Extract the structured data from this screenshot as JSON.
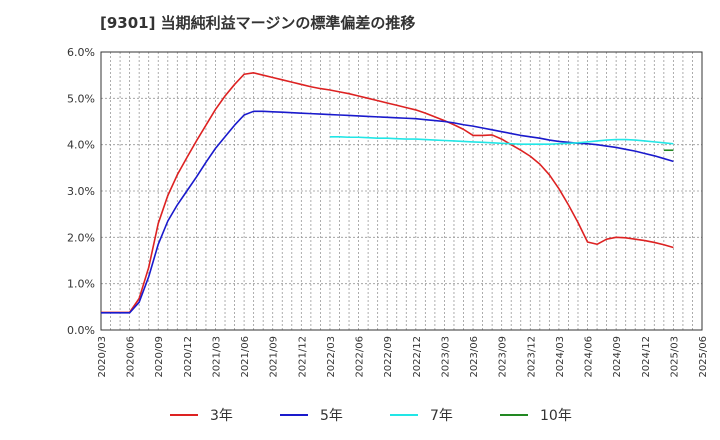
{
  "chart_data": {
    "type": "line",
    "title": "[9301]  当期純利益マージンの標準偏差の推移",
    "xlabel": "",
    "ylabel": "",
    "ylim": [
      0,
      6
    ],
    "y_ticks": [
      "0.0%",
      "1.0%",
      "2.0%",
      "3.0%",
      "4.0%",
      "5.0%",
      "6.0%"
    ],
    "x_ticks": [
      "2020/03",
      "2020/06",
      "2020/09",
      "2020/12",
      "2021/03",
      "2021/06",
      "2021/09",
      "2021/12",
      "2022/03",
      "2022/06",
      "2022/09",
      "2022/12",
      "2023/03",
      "2023/06",
      "2023/09",
      "2023/12",
      "2024/03",
      "2024/06",
      "2024/09",
      "2024/12",
      "2025/03",
      "2025/06"
    ],
    "grid": true,
    "legend_position": "bottom",
    "series": [
      {
        "name": "3年",
        "color": "#dd2222",
        "points": [
          [
            "2020/03",
            0.38
          ],
          [
            "2020/04",
            0.38
          ],
          [
            "2020/05",
            0.38
          ],
          [
            "2020/06",
            0.38
          ],
          [
            "2020/07",
            0.68
          ],
          [
            "2020/08",
            1.35
          ],
          [
            "2020/09",
            2.3
          ],
          [
            "2020/10",
            2.9
          ],
          [
            "2020/11",
            3.35
          ],
          [
            "2020/12",
            3.72
          ],
          [
            "2021/01",
            4.08
          ],
          [
            "2021/02",
            4.42
          ],
          [
            "2021/03",
            4.76
          ],
          [
            "2021/04",
            5.05
          ],
          [
            "2021/05",
            5.3
          ],
          [
            "2021/06",
            5.52
          ],
          [
            "2021/07",
            5.55
          ],
          [
            "2021/08",
            5.5
          ],
          [
            "2021/09",
            5.45
          ],
          [
            "2021/10",
            5.4
          ],
          [
            "2021/11",
            5.35
          ],
          [
            "2021/12",
            5.3
          ],
          [
            "2022/01",
            5.25
          ],
          [
            "2022/02",
            5.21
          ],
          [
            "2022/03",
            5.18
          ],
          [
            "2022/04",
            5.14
          ],
          [
            "2022/05",
            5.1
          ],
          [
            "2022/06",
            5.05
          ],
          [
            "2022/07",
            5.0
          ],
          [
            "2022/08",
            4.95
          ],
          [
            "2022/09",
            4.9
          ],
          [
            "2022/10",
            4.85
          ],
          [
            "2022/11",
            4.8
          ],
          [
            "2022/12",
            4.75
          ],
          [
            "2023/01",
            4.68
          ],
          [
            "2023/02",
            4.6
          ],
          [
            "2023/03",
            4.52
          ],
          [
            "2023/04",
            4.43
          ],
          [
            "2023/05",
            4.33
          ],
          [
            "2023/06",
            4.2
          ],
          [
            "2023/07",
            4.2
          ],
          [
            "2023/08",
            4.21
          ],
          [
            "2023/09",
            4.12
          ],
          [
            "2023/10",
            4.0
          ],
          [
            "2023/11",
            3.88
          ],
          [
            "2023/12",
            3.75
          ],
          [
            "2024/01",
            3.58
          ],
          [
            "2024/02",
            3.35
          ],
          [
            "2024/03",
            3.05
          ],
          [
            "2024/04",
            2.7
          ],
          [
            "2024/05",
            2.32
          ],
          [
            "2024/06",
            1.9
          ],
          [
            "2024/07",
            1.85
          ],
          [
            "2024/08",
            1.96
          ],
          [
            "2024/09",
            2.0
          ],
          [
            "2024/10",
            1.99
          ],
          [
            "2024/11",
            1.96
          ],
          [
            "2024/12",
            1.93
          ],
          [
            "2025/01",
            1.89
          ],
          [
            "2025/02",
            1.84
          ],
          [
            "2025/03",
            1.78
          ]
        ]
      },
      {
        "name": "5年",
        "color": "#1a1acc",
        "points": [
          [
            "2020/03",
            0.37
          ],
          [
            "2020/04",
            0.37
          ],
          [
            "2020/05",
            0.37
          ],
          [
            "2020/06",
            0.37
          ],
          [
            "2020/07",
            0.6
          ],
          [
            "2020/08",
            1.15
          ],
          [
            "2020/09",
            1.85
          ],
          [
            "2020/10",
            2.35
          ],
          [
            "2020/11",
            2.7
          ],
          [
            "2020/12",
            3.0
          ],
          [
            "2021/01",
            3.3
          ],
          [
            "2021/02",
            3.62
          ],
          [
            "2021/03",
            3.92
          ],
          [
            "2021/04",
            4.17
          ],
          [
            "2021/05",
            4.42
          ],
          [
            "2021/06",
            4.64
          ],
          [
            "2021/07",
            4.72
          ],
          [
            "2021/08",
            4.72
          ],
          [
            "2021/09",
            4.71
          ],
          [
            "2021/10",
            4.7
          ],
          [
            "2021/11",
            4.69
          ],
          [
            "2021/12",
            4.68
          ],
          [
            "2022/01",
            4.67
          ],
          [
            "2022/02",
            4.66
          ],
          [
            "2022/03",
            4.65
          ],
          [
            "2022/04",
            4.64
          ],
          [
            "2022/05",
            4.63
          ],
          [
            "2022/06",
            4.62
          ],
          [
            "2022/07",
            4.61
          ],
          [
            "2022/08",
            4.6
          ],
          [
            "2022/09",
            4.59
          ],
          [
            "2022/10",
            4.58
          ],
          [
            "2022/11",
            4.57
          ],
          [
            "2022/12",
            4.56
          ],
          [
            "2023/01",
            4.54
          ],
          [
            "2023/02",
            4.52
          ],
          [
            "2023/03",
            4.5
          ],
          [
            "2023/04",
            4.47
          ],
          [
            "2023/05",
            4.43
          ],
          [
            "2023/06",
            4.4
          ],
          [
            "2023/07",
            4.36
          ],
          [
            "2023/08",
            4.32
          ],
          [
            "2023/09",
            4.28
          ],
          [
            "2023/10",
            4.24
          ],
          [
            "2023/11",
            4.2
          ],
          [
            "2023/12",
            4.17
          ],
          [
            "2024/01",
            4.14
          ],
          [
            "2024/02",
            4.1
          ],
          [
            "2024/03",
            4.07
          ],
          [
            "2024/04",
            4.05
          ],
          [
            "2024/05",
            4.03
          ],
          [
            "2024/06",
            4.02
          ],
          [
            "2024/07",
            4.0
          ],
          [
            "2024/08",
            3.97
          ],
          [
            "2024/09",
            3.94
          ],
          [
            "2024/10",
            3.9
          ],
          [
            "2024/11",
            3.86
          ],
          [
            "2024/12",
            3.81
          ],
          [
            "2025/01",
            3.76
          ],
          [
            "2025/02",
            3.7
          ],
          [
            "2025/03",
            3.64
          ]
        ]
      },
      {
        "name": "7年",
        "color": "#22e6e6",
        "points": [
          [
            "2022/03",
            4.17
          ],
          [
            "2022/04",
            4.17
          ],
          [
            "2022/05",
            4.16
          ],
          [
            "2022/06",
            4.16
          ],
          [
            "2022/07",
            4.15
          ],
          [
            "2022/08",
            4.14
          ],
          [
            "2022/09",
            4.14
          ],
          [
            "2022/10",
            4.13
          ],
          [
            "2022/11",
            4.12
          ],
          [
            "2022/12",
            4.12
          ],
          [
            "2023/01",
            4.11
          ],
          [
            "2023/02",
            4.1
          ],
          [
            "2023/03",
            4.09
          ],
          [
            "2023/04",
            4.08
          ],
          [
            "2023/05",
            4.07
          ],
          [
            "2023/06",
            4.06
          ],
          [
            "2023/07",
            4.05
          ],
          [
            "2023/08",
            4.04
          ],
          [
            "2023/09",
            4.03
          ],
          [
            "2023/10",
            4.02
          ],
          [
            "2023/11",
            4.01
          ],
          [
            "2023/12",
            4.01
          ],
          [
            "2024/01",
            4.01
          ],
          [
            "2024/02",
            4.01
          ],
          [
            "2024/03",
            4.02
          ],
          [
            "2024/04",
            4.03
          ],
          [
            "2024/05",
            4.04
          ],
          [
            "2024/06",
            4.06
          ],
          [
            "2024/07",
            4.08
          ],
          [
            "2024/08",
            4.1
          ],
          [
            "2024/09",
            4.11
          ],
          [
            "2024/10",
            4.11
          ],
          [
            "2024/11",
            4.1
          ],
          [
            "2024/12",
            4.08
          ],
          [
            "2025/01",
            4.06
          ],
          [
            "2025/02",
            4.04
          ],
          [
            "2025/03",
            4.02
          ]
        ]
      },
      {
        "name": "10年",
        "color": "#228822",
        "points": [
          [
            "2025/02",
            3.88
          ],
          [
            "2025/03",
            3.88
          ]
        ]
      }
    ]
  }
}
